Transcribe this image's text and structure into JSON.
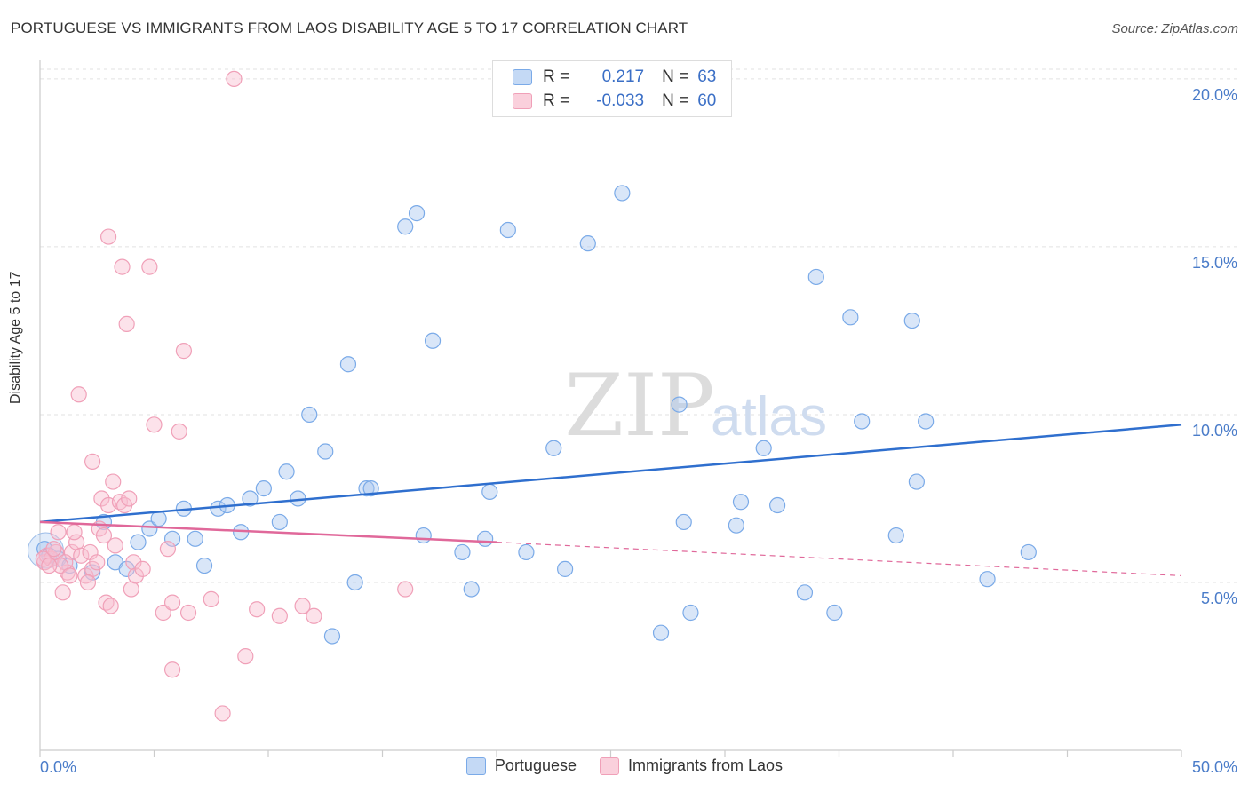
{
  "title": "PORTUGUESE VS IMMIGRANTS FROM LAOS DISABILITY AGE 5 TO 17 CORRELATION CHART",
  "source": "Source: ZipAtlas.com",
  "watermark": {
    "zip": "ZIP",
    "atlas": "atlas"
  },
  "legend": {
    "r_label": "R =",
    "n_label": "N =",
    "rows": [
      {
        "r": "0.217",
        "n": "63"
      },
      {
        "r": "-0.033",
        "n": "60"
      }
    ]
  },
  "colors": {
    "blue": "#7aaae8",
    "blue_line": "#2f6fce",
    "pink": "#f0a0b8",
    "pink_line": "#e0689a",
    "axis_text": "#4a7cc9"
  },
  "chart_data": {
    "type": "scatter",
    "ylabel": "Disability Age 5 to 17",
    "xlim": [
      0,
      50
    ],
    "ylim": [
      0,
      20.5
    ],
    "x_tick_labels": [
      "0.0%",
      "50.0%"
    ],
    "y_ticks": [
      5,
      10,
      15,
      20
    ],
    "y_tick_labels": [
      "5.0%",
      "10.0%",
      "15.0%",
      "20.0%"
    ],
    "grid": "horizontal dashed",
    "legend_placement": "bottom-center",
    "series": [
      {
        "name": "Portuguese",
        "color": "#7aaae8",
        "trend": {
          "x": [
            0,
            50
          ],
          "y": [
            6.8,
            9.7
          ]
        },
        "points": [
          [
            0.2,
            6.0
          ],
          [
            0.4,
            5.8
          ],
          [
            0.8,
            5.7
          ],
          [
            1.3,
            5.5
          ],
          [
            2.3,
            5.3
          ],
          [
            2.8,
            6.8
          ],
          [
            3.3,
            5.6
          ],
          [
            3.8,
            5.4
          ],
          [
            4.3,
            6.2
          ],
          [
            4.8,
            6.6
          ],
          [
            5.2,
            6.9
          ],
          [
            5.8,
            6.3
          ],
          [
            6.3,
            7.2
          ],
          [
            6.8,
            6.3
          ],
          [
            7.2,
            5.5
          ],
          [
            7.8,
            7.2
          ],
          [
            8.2,
            7.3
          ],
          [
            8.8,
            6.5
          ],
          [
            9.2,
            7.5
          ],
          [
            9.8,
            7.8
          ],
          [
            10.5,
            6.8
          ],
          [
            10.8,
            8.3
          ],
          [
            11.3,
            7.5
          ],
          [
            11.8,
            10.0
          ],
          [
            12.5,
            8.9
          ],
          [
            12.8,
            3.4
          ],
          [
            13.5,
            11.5
          ],
          [
            13.8,
            5.0
          ],
          [
            14.3,
            7.8
          ],
          [
            14.5,
            7.8
          ],
          [
            16.0,
            15.6
          ],
          [
            16.5,
            16.0
          ],
          [
            16.8,
            6.4
          ],
          [
            17.2,
            12.2
          ],
          [
            18.5,
            5.9
          ],
          [
            18.9,
            4.8
          ],
          [
            19.5,
            6.3
          ],
          [
            19.7,
            7.7
          ],
          [
            20.5,
            15.5
          ],
          [
            21.3,
            5.9
          ],
          [
            22.5,
            9.0
          ],
          [
            23.0,
            5.4
          ],
          [
            24.0,
            15.1
          ],
          [
            25.5,
            16.6
          ],
          [
            27.2,
            3.5
          ],
          [
            28.0,
            10.3
          ],
          [
            28.2,
            6.8
          ],
          [
            28.5,
            4.1
          ],
          [
            30.5,
            6.7
          ],
          [
            30.7,
            7.4
          ],
          [
            31.7,
            9.0
          ],
          [
            32.3,
            7.3
          ],
          [
            33.5,
            4.7
          ],
          [
            34.0,
            14.1
          ],
          [
            34.8,
            4.1
          ],
          [
            35.5,
            12.9
          ],
          [
            36.0,
            9.8
          ],
          [
            37.5,
            6.4
          ],
          [
            38.2,
            12.8
          ],
          [
            38.4,
            8.0
          ],
          [
            38.8,
            9.8
          ],
          [
            41.5,
            5.1
          ],
          [
            43.3,
            5.9
          ]
        ]
      },
      {
        "name": "Immigrants from Laos",
        "color": "#f0a0b8",
        "trend": {
          "x": [
            0,
            20
          ],
          "y": [
            6.8,
            6.2
          ],
          "dashed_to": [
            50,
            5.2
          ]
        },
        "points": [
          [
            0.2,
            5.6
          ],
          [
            0.3,
            5.8
          ],
          [
            0.5,
            5.7
          ],
          [
            0.7,
            5.9
          ],
          [
            0.8,
            6.5
          ],
          [
            1.0,
            4.7
          ],
          [
            1.2,
            5.3
          ],
          [
            1.4,
            5.9
          ],
          [
            1.6,
            6.2
          ],
          [
            1.8,
            5.8
          ],
          [
            1.7,
            10.6
          ],
          [
            2.0,
            5.2
          ],
          [
            2.2,
            5.9
          ],
          [
            2.3,
            5.4
          ],
          [
            2.3,
            8.6
          ],
          [
            2.5,
            5.6
          ],
          [
            2.6,
            6.6
          ],
          [
            2.7,
            7.5
          ],
          [
            2.8,
            6.4
          ],
          [
            2.9,
            4.4
          ],
          [
            3.0,
            7.3
          ],
          [
            3.0,
            15.3
          ],
          [
            3.1,
            4.3
          ],
          [
            3.2,
            8.0
          ],
          [
            3.3,
            6.1
          ],
          [
            3.5,
            7.4
          ],
          [
            3.6,
            14.4
          ],
          [
            3.7,
            7.3
          ],
          [
            3.8,
            12.7
          ],
          [
            3.9,
            7.5
          ],
          [
            4.0,
            4.8
          ],
          [
            4.1,
            5.6
          ],
          [
            4.2,
            5.2
          ],
          [
            4.5,
            5.4
          ],
          [
            4.8,
            14.4
          ],
          [
            5.0,
            9.7
          ],
          [
            5.4,
            4.1
          ],
          [
            5.6,
            6.0
          ],
          [
            5.8,
            4.4
          ],
          [
            6.3,
            11.9
          ],
          [
            6.1,
            9.5
          ],
          [
            5.8,
            2.4
          ],
          [
            6.5,
            4.1
          ],
          [
            7.5,
            4.5
          ],
          [
            8.0,
            1.1
          ],
          [
            8.5,
            20.0
          ],
          [
            9.0,
            2.8
          ],
          [
            9.5,
            4.2
          ],
          [
            10.5,
            4.0
          ],
          [
            11.5,
            4.3
          ],
          [
            12.0,
            4.0
          ],
          [
            16.0,
            4.8
          ],
          [
            0.15,
            5.7
          ],
          [
            0.6,
            6.0
          ],
          [
            1.1,
            5.6
          ],
          [
            1.5,
            6.5
          ],
          [
            0.9,
            5.5
          ],
          [
            2.1,
            5.0
          ],
          [
            1.3,
            5.2
          ],
          [
            0.4,
            5.5
          ]
        ]
      }
    ]
  }
}
